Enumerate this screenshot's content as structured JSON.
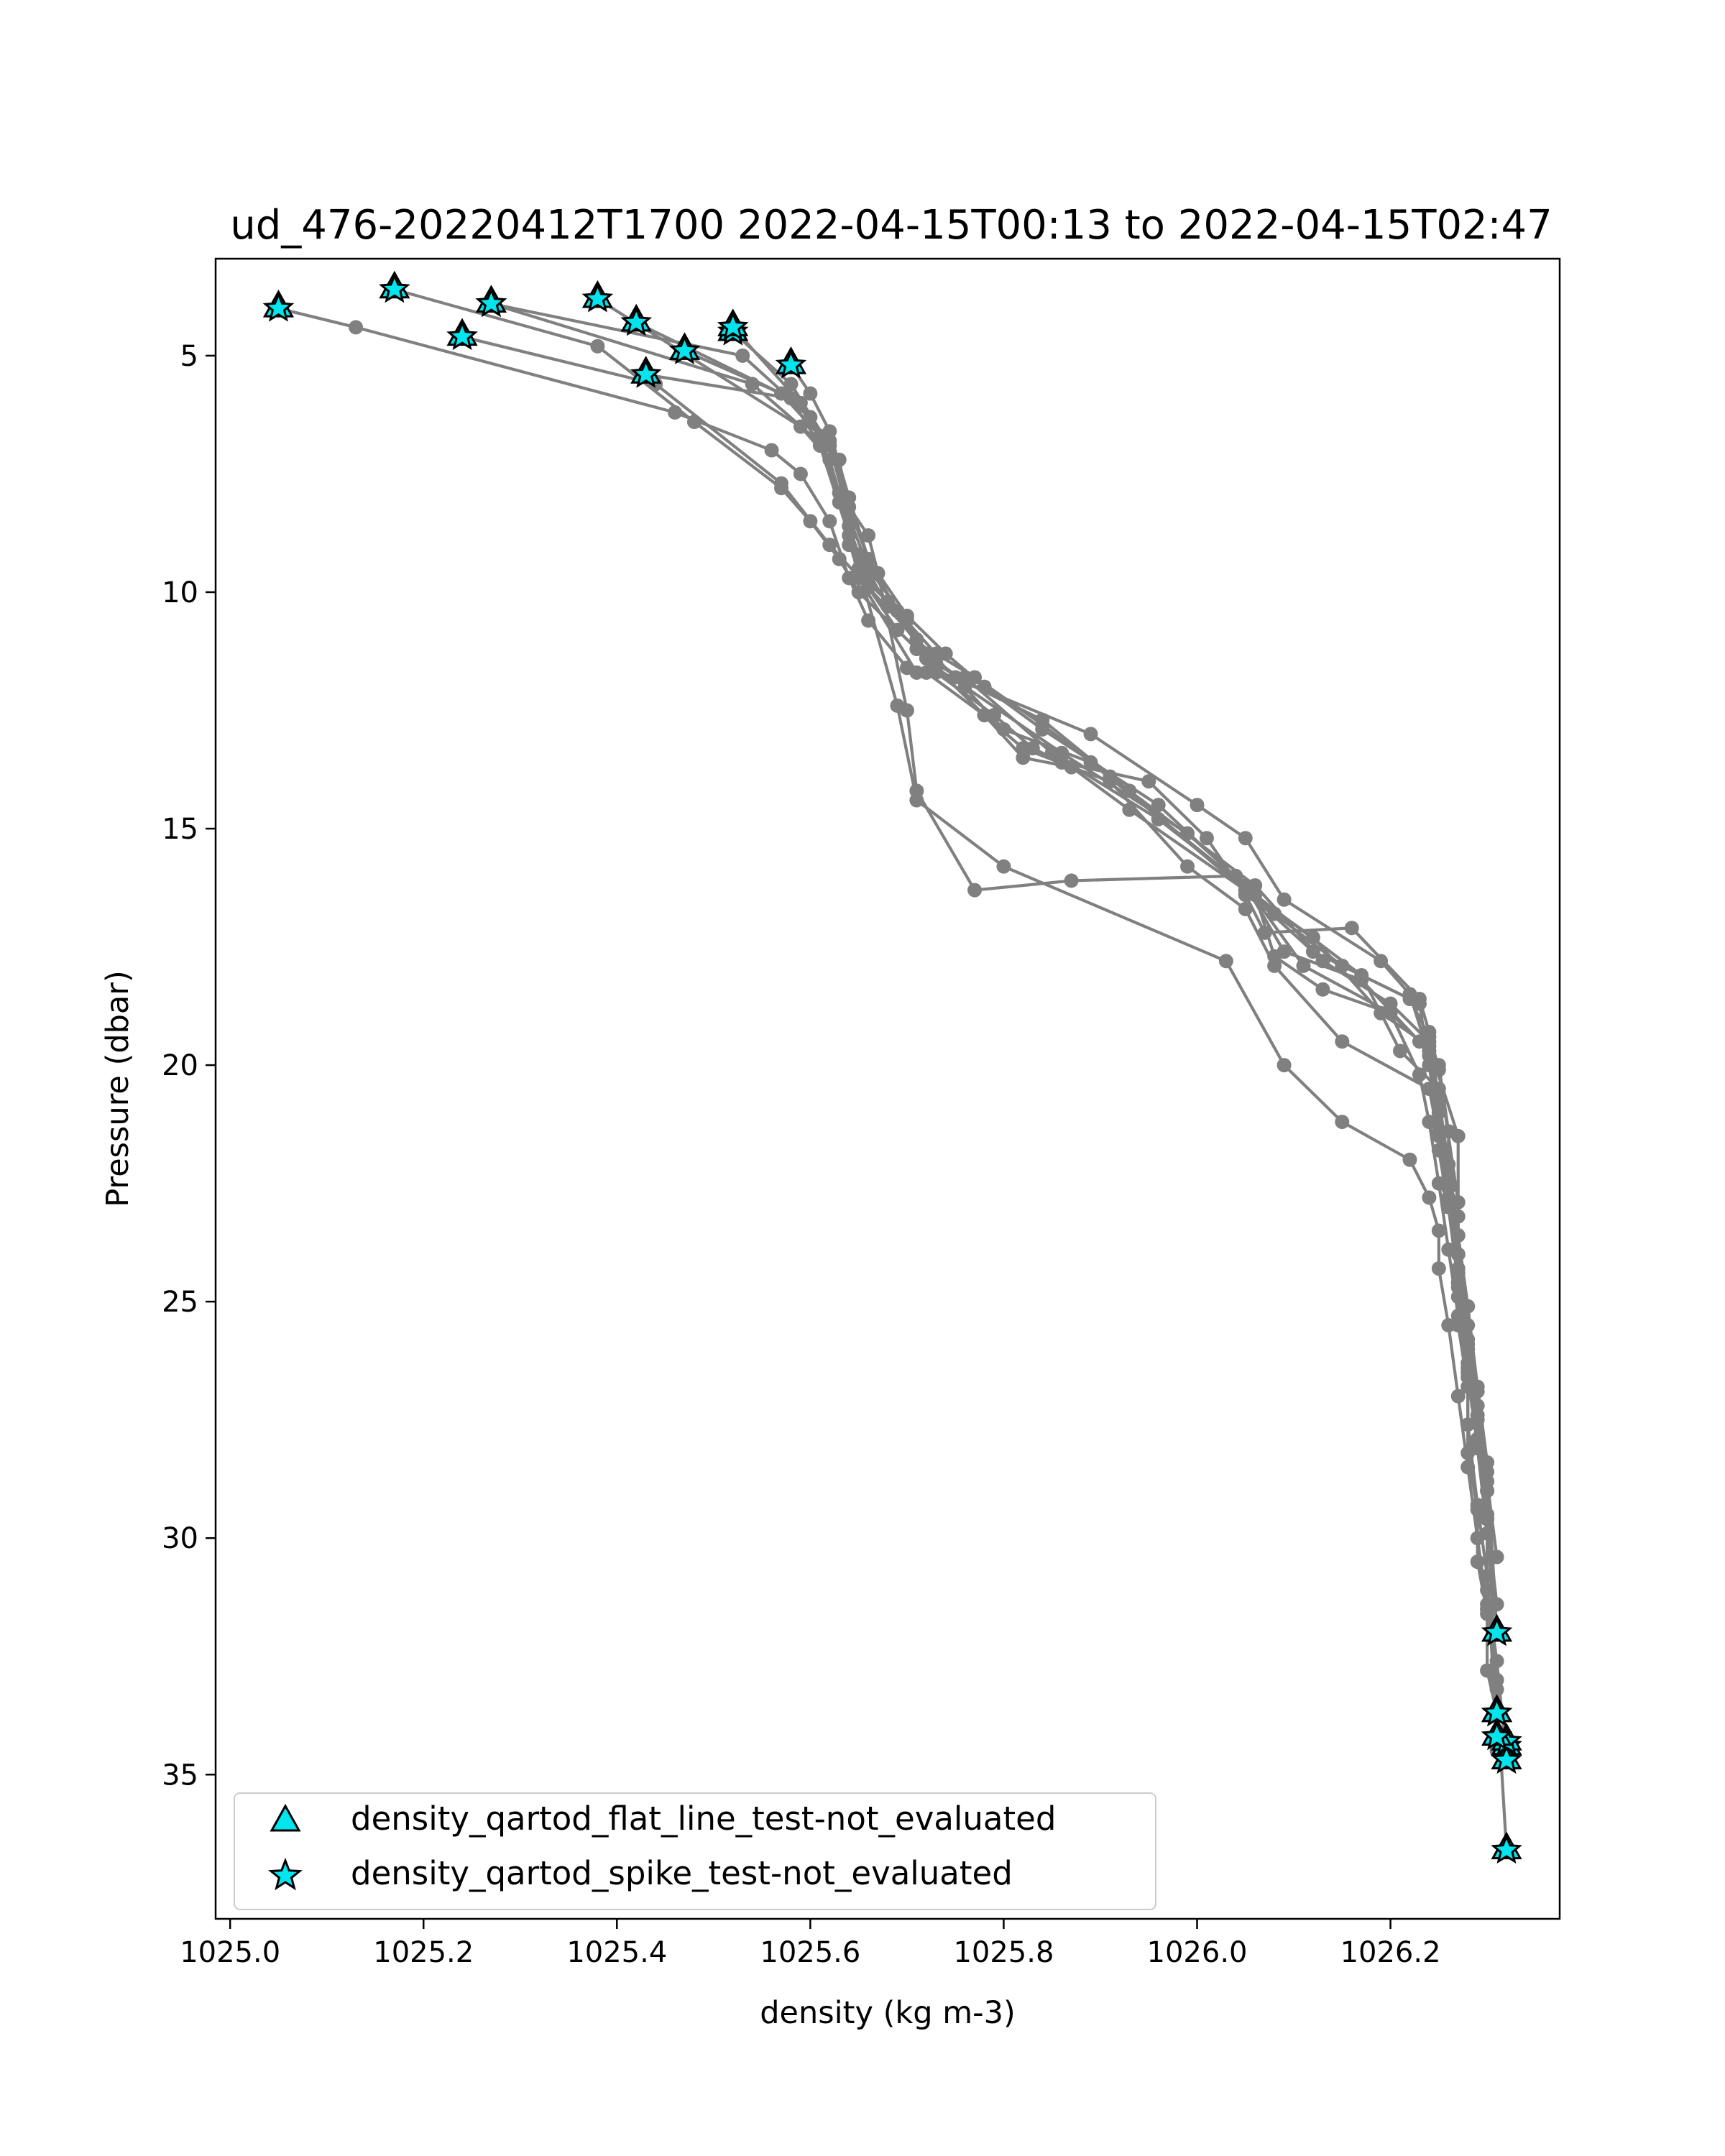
{
  "chart_data": {
    "type": "line",
    "title": "ud_476-20220412T1700 2022-04-15T00:13 to 2022-04-15T02:47",
    "xlabel": "density (kg m-3)",
    "ylabel": "Pressure (dbar)",
    "xlim": [
      1024.985,
      1026.375
    ],
    "ylim": [
      38.05,
      2.95
    ],
    "y_inverted": true,
    "xticks": [
      1025.0,
      1025.2,
      1025.4,
      1025.6,
      1025.8,
      1026.0,
      1026.2
    ],
    "xtick_labels": [
      "1025.0",
      "1025.2",
      "1025.4",
      "1025.6",
      "1025.8",
      "1026.0",
      "1026.2"
    ],
    "yticks": [
      5,
      10,
      15,
      20,
      25,
      30,
      35
    ],
    "ytick_labels": [
      "5",
      "10",
      "15",
      "20",
      "25",
      "30",
      "35"
    ],
    "grid": false,
    "legend_position": "lower-left",
    "colors": {
      "profile": "#808080",
      "marker_fill": "#00e5ee",
      "marker_edge": "#000000"
    },
    "series": [
      {
        "x": [
          1025.05,
          1025.13,
          1025.46,
          1025.56,
          1025.59,
          1025.62,
          1025.64,
          1025.66,
          1025.7,
          1025.72,
          1025.78,
          1025.82,
          1025.87,
          1025.91,
          1025.99,
          1026.05,
          1026.08,
          1026.15,
          1026.24,
          1026.26,
          1026.27,
          1026.27,
          1026.28,
          1026.28,
          1026.29,
          1026.29,
          1026.3,
          1026.3,
          1026.31,
          1026.31
        ],
        "y": [
          4.0,
          4.4,
          6.2,
          7.0,
          7.5,
          8.5,
          9.7,
          10.6,
          11.6,
          11.7,
          12.6,
          13.3,
          13.7,
          14.0,
          15.8,
          16.7,
          17.9,
          19.5,
          20.5,
          22.6,
          24.0,
          25.5,
          26.8,
          28.2,
          29.4,
          30.5,
          31.6,
          32.8,
          33.7,
          34.5
        ],
        "star_points": [
          0,
          28
        ]
      },
      {
        "x": [
          1025.17,
          1025.38,
          1025.48,
          1025.57,
          1025.6,
          1025.63,
          1025.65,
          1025.71,
          1025.73,
          1025.79,
          1025.83,
          1025.86,
          1025.95,
          1026.01,
          1026.05,
          1026.07,
          1026.16,
          1026.23,
          1026.24,
          1026.25,
          1026.27,
          1026.27,
          1026.28,
          1026.29,
          1026.3,
          1026.3,
          1026.31,
          1026.32
        ],
        "y": [
          3.6,
          4.8,
          6.4,
          7.8,
          8.5,
          9.3,
          10.0,
          11.2,
          11.7,
          12.6,
          13.3,
          13.6,
          14.0,
          15.2,
          16.4,
          17.2,
          17.1,
          18.6,
          19.3,
          20.1,
          22.9,
          24.9,
          26.5,
          28.0,
          29.6,
          31.4,
          33.0,
          34.4
        ],
        "star_points": [
          0,
          27
        ]
      },
      {
        "x": [
          1025.24,
          1025.44,
          1025.57,
          1025.62,
          1025.66,
          1025.69,
          1025.72,
          1025.78,
          1025.82,
          1025.87,
          1025.93,
          1026.05,
          1026.12,
          1026.19,
          1026.24,
          1026.27,
          1026.27,
          1026.27,
          1026.28,
          1026.29,
          1026.3,
          1026.3,
          1026.31,
          1026.32
        ],
        "y": [
          4.6,
          5.6,
          7.7,
          9.0,
          9.9,
          10.8,
          11.4,
          12.6,
          13.5,
          13.7,
          14.6,
          16.3,
          17.3,
          18.9,
          19.6,
          21.5,
          23.2,
          24.7,
          26.3,
          27.9,
          29.5,
          31.1,
          32.6,
          34.7
        ],
        "star_points": [
          0,
          23
        ]
      },
      {
        "x": [
          1025.27,
          1025.53,
          1025.6,
          1025.63,
          1025.66,
          1025.67,
          1025.7,
          1025.71,
          1025.77,
          1025.87,
          1026.04,
          1026.05,
          1026.09,
          1026.17,
          1026.23,
          1026.25,
          1026.26,
          1026.26,
          1026.27,
          1026.28,
          1026.29,
          1026.3,
          1026.3,
          1026.31,
          1026.32
        ],
        "y": [
          3.9,
          5.0,
          6.3,
          7.9,
          8.8,
          9.6,
          12.5,
          14.2,
          16.3,
          16.1,
          16.0,
          16.2,
          17.6,
          18.2,
          19.5,
          20.0,
          21.4,
          23.0,
          24.6,
          26.4,
          28.1,
          29.9,
          31.5,
          33.2,
          36.6
        ],
        "star_points": [
          0,
          24
        ]
      },
      {
        "x": [
          1025.27,
          1025.54,
          1025.63,
          1025.65,
          1025.69,
          1025.71,
          1025.8,
          1026.03,
          1026.09,
          1026.15,
          1026.22,
          1026.24,
          1026.25,
          1026.25,
          1026.26,
          1026.27,
          1026.28,
          1026.29,
          1026.3,
          1026.31,
          1026.32
        ],
        "y": [
          3.9,
          5.6,
          7.2,
          9.5,
          12.4,
          14.4,
          15.8,
          17.8,
          20.0,
          21.2,
          22.0,
          22.8,
          23.5,
          24.3,
          25.5,
          27.0,
          28.5,
          30.0,
          31.5,
          33.0,
          34.3
        ],
        "star_points": [
          0,
          20
        ]
      },
      {
        "x": [
          1025.38,
          1025.59,
          1025.62,
          1025.64,
          1025.66,
          1025.68,
          1025.73,
          1025.76,
          1025.89,
          1026.0,
          1026.05,
          1026.09,
          1026.19,
          1026.22,
          1026.24,
          1026.25,
          1026.26,
          1026.27,
          1026.28,
          1026.29,
          1026.3,
          1026.31
        ],
        "y": [
          3.8,
          6.5,
          7.2,
          8.6,
          9.8,
          10.2,
          11.5,
          11.9,
          13.0,
          14.5,
          15.2,
          16.5,
          17.8,
          18.5,
          19.8,
          21.5,
          22.9,
          24.4,
          25.9,
          27.5,
          29.0,
          33.7
        ],
        "star_points": [
          0,
          21
        ]
      },
      {
        "x": [
          1025.42,
          1025.58,
          1025.61,
          1025.64,
          1025.65,
          1025.71,
          1025.76,
          1025.85,
          1025.96,
          1026.06,
          1026.17,
          1026.21,
          1026.25,
          1026.25,
          1026.26,
          1026.27,
          1026.28,
          1026.28,
          1026.29,
          1026.3,
          1026.31
        ],
        "y": [
          4.3,
          5.9,
          6.9,
          8.8,
          9.7,
          11.7,
          11.8,
          13.4,
          14.8,
          16.4,
          18.1,
          19.7,
          20.5,
          21.8,
          23.0,
          24.6,
          26.0,
          27.6,
          29.3,
          30.8,
          34.2
        ],
        "star_points": [
          0,
          20
        ]
      },
      {
        "x": [
          1025.47,
          1025.57,
          1025.61,
          1025.63,
          1025.64,
          1025.66,
          1025.71,
          1025.75,
          1025.8,
          1025.89,
          1026.06,
          1026.08,
          1026.13,
          1026.2,
          1026.24,
          1026.25,
          1026.26,
          1026.27,
          1026.28,
          1026.29,
          1026.3,
          1026.31
        ],
        "y": [
          4.9,
          5.8,
          6.7,
          7.9,
          9.0,
          9.9,
          11.0,
          11.8,
          12.9,
          13.6,
          16.4,
          17.7,
          18.4,
          18.9,
          19.7,
          20.9,
          22.3,
          23.6,
          25.1,
          26.8,
          28.4,
          32.0
        ],
        "star_points": [
          0,
          21
        ]
      },
      {
        "x": [
          1025.52,
          1025.58,
          1025.62,
          1025.64,
          1025.66,
          1025.7,
          1025.73,
          1025.76,
          1025.86,
          1025.99,
          1026.05,
          1026.11,
          1026.2,
          1026.23,
          1026.24,
          1026.25,
          1026.26,
          1026.27,
          1026.28,
          1026.29,
          1026.3,
          1026.31
        ],
        "y": [
          4.5,
          5.6,
          6.9,
          8.4,
          9.5,
          10.6,
          11.6,
          12.0,
          13.4,
          15.1,
          16.2,
          17.9,
          18.9,
          20.2,
          21.2,
          22.5,
          23.9,
          25.3,
          26.6,
          28.0,
          29.6,
          31.4
        ],
        "star_points": [
          0
        ]
      },
      {
        "x": [
          1025.52,
          1025.59,
          1025.61,
          1025.63,
          1025.65,
          1025.68,
          1025.72,
          1025.76,
          1025.84,
          1025.93,
          1026.06,
          1026.13,
          1026.2,
          1026.24,
          1026.25,
          1026.26,
          1026.27,
          1026.28,
          1026.29,
          1026.3,
          1026.31
        ],
        "y": [
          4.4,
          6.0,
          6.7,
          8.1,
          9.2,
          10.3,
          11.3,
          11.9,
          12.7,
          14.2,
          16.2,
          17.8,
          18.7,
          19.5,
          21.0,
          22.4,
          24.0,
          25.5,
          27.2,
          28.8,
          30.4
        ],
        "star_points": [
          0
        ]
      },
      {
        "x": [
          1025.43,
          1025.58,
          1025.62,
          1025.64,
          1025.66,
          1025.69,
          1025.73,
          1025.77,
          1025.84,
          1025.91,
          1026.05,
          1026.12,
          1026.22,
          1026.24,
          1026.25,
          1026.26,
          1026.27,
          1026.28,
          1026.29,
          1026.3
        ],
        "y": [
          5.4,
          5.9,
          6.8,
          8.2,
          9.3,
          10.4,
          11.3,
          11.8,
          12.8,
          13.9,
          16.3,
          17.6,
          18.6,
          19.4,
          20.7,
          22.1,
          23.6,
          25.1,
          26.9,
          28.6
        ],
        "star_points": [
          0
        ]
      },
      {
        "x": [
          1025.58,
          1025.6,
          1025.62,
          1025.64,
          1025.66,
          1025.7,
          1025.74,
          1025.78,
          1025.84,
          1025.96,
          1026.08,
          1026.15,
          1026.23,
          1026.24,
          1026.25,
          1026.26,
          1026.27,
          1026.28,
          1026.29,
          1026.3
        ],
        "y": [
          5.2,
          5.8,
          6.6,
          8.0,
          9.3,
          10.5,
          11.3,
          12.0,
          12.9,
          14.5,
          16.8,
          17.9,
          18.7,
          20.0,
          21.4,
          22.8,
          24.3,
          25.8,
          27.4,
          29.0
        ],
        "star_points": [
          0
        ]
      }
    ],
    "legend": [
      {
        "marker": "triangle",
        "label": "density_qartod_flat_line_test-not_evaluated"
      },
      {
        "marker": "star",
        "label": "density_qartod_spike_test-not_evaluated"
      }
    ]
  }
}
